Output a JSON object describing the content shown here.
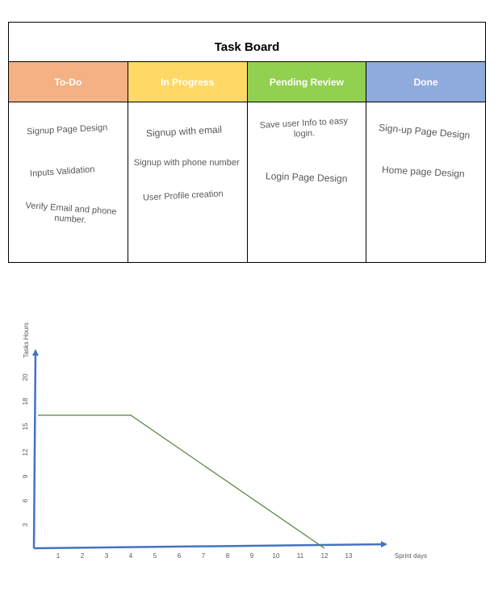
{
  "board": {
    "title": "Task Board",
    "columns": [
      {
        "name": "To-Do",
        "color": "#f4b183",
        "tasks": [
          "Signup Page Design",
          "Inputs Validation",
          "Verify Email and phone\nnumber."
        ]
      },
      {
        "name": "In Progress",
        "color": "#ffd966",
        "tasks": [
          "Signup with email",
          "Signup with phone number",
          "User Profile creation"
        ]
      },
      {
        "name": "Pending Review",
        "color": "#92d050",
        "tasks": [
          "Save user Info to easy\nlogin.",
          "Login Page Design"
        ]
      },
      {
        "name": "Done",
        "color": "#8faadc",
        "tasks": [
          "Sign-up Page Design",
          "Home page Design"
        ]
      }
    ]
  },
  "chart_data": {
    "type": "line",
    "ylabel": "Tasks Hours",
    "xlabel": "Sprint days",
    "x_ticks": [
      1,
      2,
      3,
      4,
      5,
      6,
      7,
      8,
      9,
      10,
      11,
      12,
      13
    ],
    "y_ticks": [
      3,
      6,
      9,
      12,
      15,
      18,
      20
    ],
    "series": [
      {
        "points": [
          [
            0,
            16
          ],
          [
            4,
            16
          ],
          [
            12,
            0
          ]
        ],
        "color": "#548235"
      }
    ],
    "axis_color": "#4472c4"
  }
}
